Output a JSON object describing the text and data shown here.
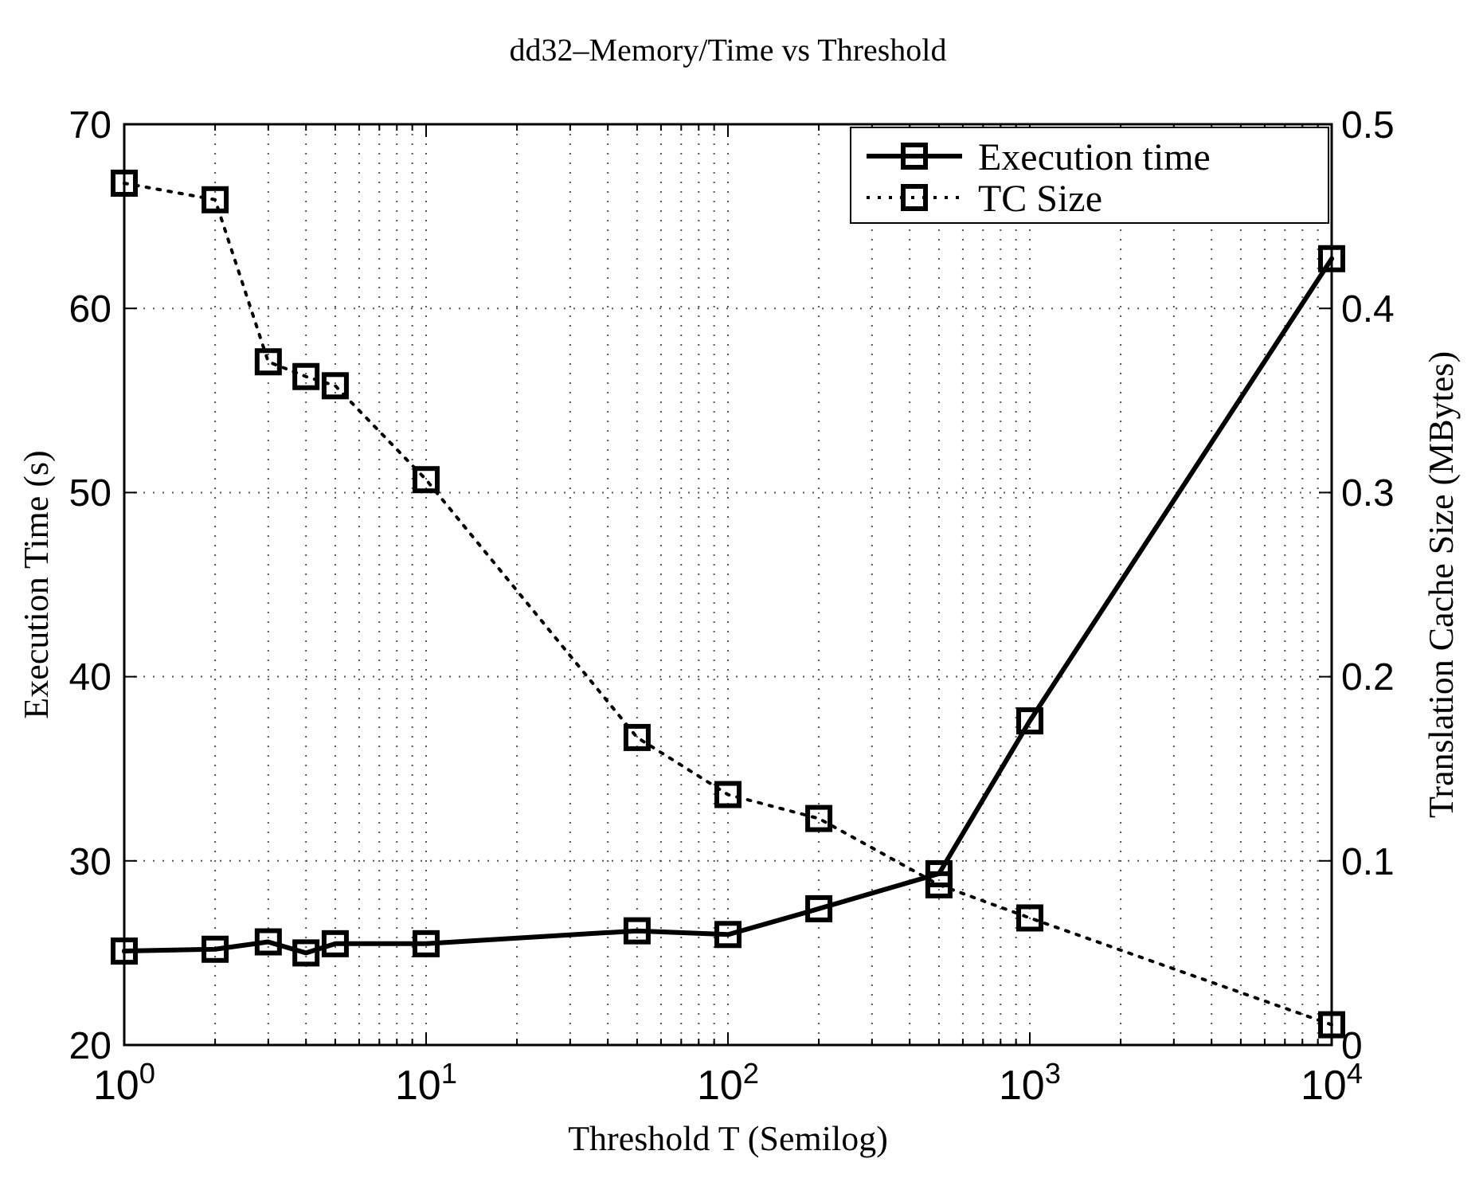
{
  "chart_data": {
    "type": "line",
    "title": "dd32–Memory/Time vs Threshold",
    "xlabel": "Threshold T (Semilog)",
    "ylabel": "Execution Time (s)",
    "y2label": "Translation Cache Size (MBytes)",
    "log": "x",
    "grid": true,
    "legend": "top right",
    "marker": "square",
    "xlim": [
      1,
      10000
    ],
    "xticks": [
      {
        "value": 1,
        "label": "10$^{0}$"
      },
      {
        "value": 10,
        "label": "10$^{1}$"
      },
      {
        "value": 100,
        "label": "10$^{2}$"
      },
      {
        "value": 1000,
        "label": "10$^{3}$"
      },
      {
        "value": 10000,
        "label": "10$^{4}$"
      }
    ],
    "ylim": [
      20,
      70
    ],
    "yticks": [
      20,
      30,
      40,
      50,
      60,
      70
    ],
    "y2lim": [
      0,
      0.5
    ],
    "y2ticks": [
      0,
      0.1,
      0.2,
      0.3,
      0.4,
      0.5
    ],
    "x": [
      1,
      2,
      3,
      4,
      5,
      10,
      50,
      100,
      200,
      500,
      1000,
      10000
    ],
    "series": [
      {
        "name": "Execution time",
        "color": "#000000",
        "line_style": "solid",
        "values": [
          25.1,
          25.2,
          25.6,
          25.0,
          25.5,
          25.5,
          26.2,
          26.0,
          27.4,
          29.3,
          37.6,
          62.7
        ]
      },
      {
        "name": "TC Size",
        "color": "#000000",
        "line_style": "dotted",
        "axis": "y2",
        "values": [
          0.468,
          0.459,
          0.371,
          0.363,
          0.358,
          0.307,
          0.167,
          0.136,
          0.123,
          0.087,
          0.069,
          0.011
        ]
      }
    ]
  }
}
